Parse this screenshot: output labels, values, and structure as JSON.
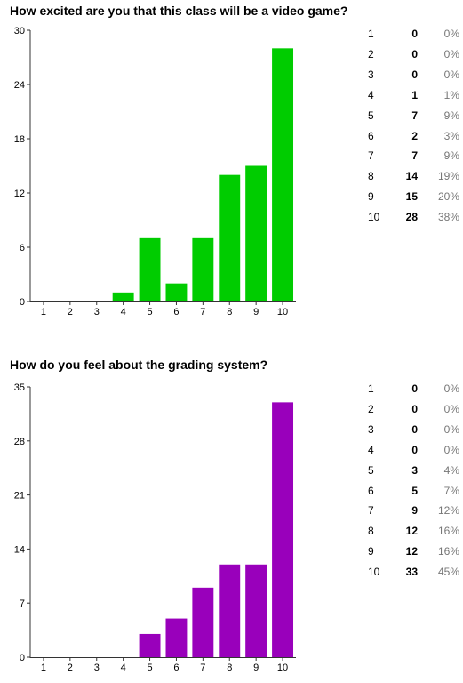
{
  "charts": [
    {
      "title": "How excited are you that this class will be a video game?",
      "color": "#00cc00",
      "stats": [
        {
          "category": "1",
          "count": "0",
          "percent": "0%"
        },
        {
          "category": "2",
          "count": "0",
          "percent": "0%"
        },
        {
          "category": "3",
          "count": "0",
          "percent": "0%"
        },
        {
          "category": "4",
          "count": "1",
          "percent": "1%"
        },
        {
          "category": "5",
          "count": "7",
          "percent": "9%"
        },
        {
          "category": "6",
          "count": "2",
          "percent": "3%"
        },
        {
          "category": "7",
          "count": "7",
          "percent": "9%"
        },
        {
          "category": "8",
          "count": "14",
          "percent": "19%"
        },
        {
          "category": "9",
          "count": "15",
          "percent": "20%"
        },
        {
          "category": "10",
          "count": "28",
          "percent": "38%"
        }
      ]
    },
    {
      "title": "How do you feel about the grading system?",
      "color": "#9900bb",
      "stats": [
        {
          "category": "1",
          "count": "0",
          "percent": "0%"
        },
        {
          "category": "2",
          "count": "0",
          "percent": "0%"
        },
        {
          "category": "3",
          "count": "0",
          "percent": "0%"
        },
        {
          "category": "4",
          "count": "0",
          "percent": "0%"
        },
        {
          "category": "5",
          "count": "3",
          "percent": "4%"
        },
        {
          "category": "6",
          "count": "5",
          "percent": "7%"
        },
        {
          "category": "7",
          "count": "9",
          "percent": "12%"
        },
        {
          "category": "8",
          "count": "12",
          "percent": "16%"
        },
        {
          "category": "9",
          "count": "12",
          "percent": "16%"
        },
        {
          "category": "10",
          "count": "33",
          "percent": "45%"
        }
      ]
    }
  ],
  "chart_data": [
    {
      "type": "bar",
      "title": "How excited are you that this class will be a video game?",
      "categories": [
        "1",
        "2",
        "3",
        "4",
        "5",
        "6",
        "7",
        "8",
        "9",
        "10"
      ],
      "values": [
        0,
        0,
        0,
        1,
        7,
        2,
        7,
        14,
        15,
        28
      ],
      "yticks": [
        "0",
        "6",
        "12",
        "18",
        "24",
        "30"
      ],
      "ylim": [
        0,
        30
      ],
      "grid": false,
      "legend": "none"
    },
    {
      "type": "bar",
      "title": "How do you feel about the grading system?",
      "categories": [
        "1",
        "2",
        "3",
        "4",
        "5",
        "6",
        "7",
        "8",
        "9",
        "10"
      ],
      "values": [
        0,
        0,
        0,
        0,
        3,
        5,
        9,
        12,
        12,
        33
      ],
      "yticks": [
        "0",
        "7",
        "14",
        "21",
        "28",
        "35"
      ],
      "ylim": [
        0,
        35
      ],
      "grid": false,
      "legend": "none"
    }
  ]
}
